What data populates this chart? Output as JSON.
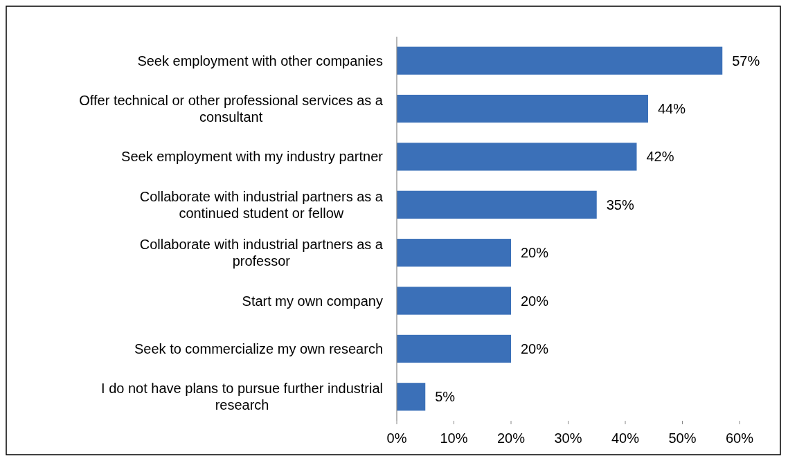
{
  "chart_data": {
    "type": "bar",
    "orientation": "horizontal",
    "categories": [
      "Seek employment with other companies",
      "Offer technical or other professional services as a consultant",
      "Seek employment with my industry partner",
      "Collaborate with industrial partners as a continued student or fellow",
      "Collaborate with industrial partners as a professor",
      "Start my own company",
      "Seek to commercialize my own research",
      "I do not have plans to pursue further industrial research"
    ],
    "values": [
      57,
      44,
      42,
      35,
      20,
      20,
      20,
      5
    ],
    "value_labels": [
      "57%",
      "44%",
      "42%",
      "35%",
      "20%",
      "20%",
      "20%",
      "5%"
    ],
    "color": "#3b70b8",
    "xlim": [
      0,
      60
    ],
    "xticks": [
      {
        "value": 0,
        "label": "0%"
      },
      {
        "value": 10,
        "label": "10%"
      },
      {
        "value": 20,
        "label": "20%"
      },
      {
        "value": 30,
        "label": "30%"
      },
      {
        "value": 40,
        "label": "40%"
      },
      {
        "value": 50,
        "label": "50%"
      },
      {
        "value": 60,
        "label": "60%"
      }
    ],
    "grid": false
  }
}
